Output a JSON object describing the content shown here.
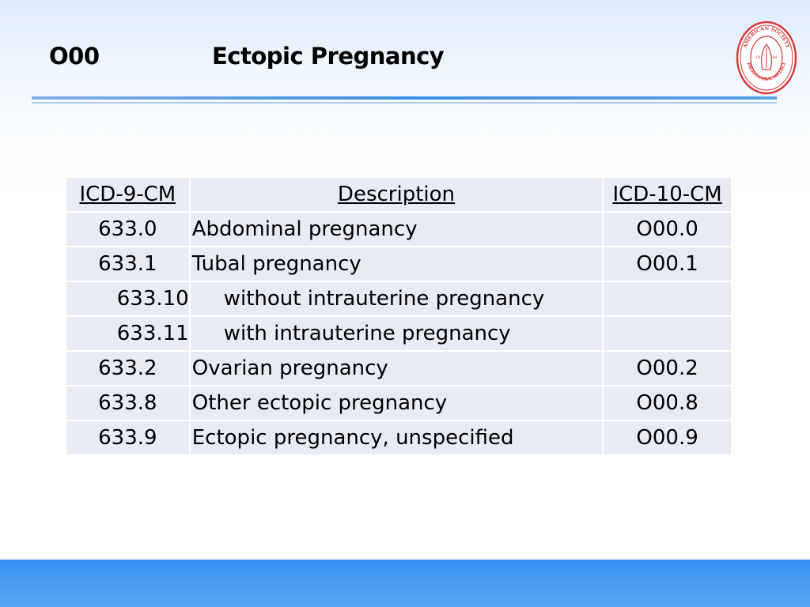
{
  "title": {
    "code": "O00",
    "text": "Ectopic Pregnancy"
  },
  "logo": {
    "name": "asrm-seal",
    "ring_text": "AMERICAN SOCIETY REPRODUCTIVE MEDICINE",
    "year_left": "19",
    "year_right": "44",
    "color": "#d93a3a"
  },
  "table": {
    "headers": [
      "ICD-9-CM",
      "Description",
      "ICD-10-CM"
    ],
    "rows": [
      {
        "icd9": "633.0",
        "description": "Abdominal pregnancy",
        "icd10": "O00.0",
        "sub": false
      },
      {
        "icd9": "633.1",
        "description": "Tubal pregnancy",
        "icd10": "O00.1",
        "sub": false
      },
      {
        "icd9": "633.10",
        "description": "without intrauterine pregnancy",
        "icd10": "",
        "sub": true
      },
      {
        "icd9": "633.11",
        "description": "with intrauterine pregnancy",
        "icd10": "",
        "sub": true
      },
      {
        "icd9": "633.2",
        "description": "Ovarian pregnancy",
        "icd10": "O00.2",
        "sub": false
      },
      {
        "icd9": "633.8",
        "description": "Other ectopic pregnancy",
        "icd10": "O00.8",
        "sub": false
      },
      {
        "icd9": "633.9",
        "description": "Ectopic pregnancy, unspecified",
        "icd10": "O00.9",
        "sub": false
      }
    ]
  },
  "colors": {
    "accent": "#3d8fe6",
    "table_cell": "#e8ebf6",
    "bottom_bar": "#3b8ff0"
  }
}
